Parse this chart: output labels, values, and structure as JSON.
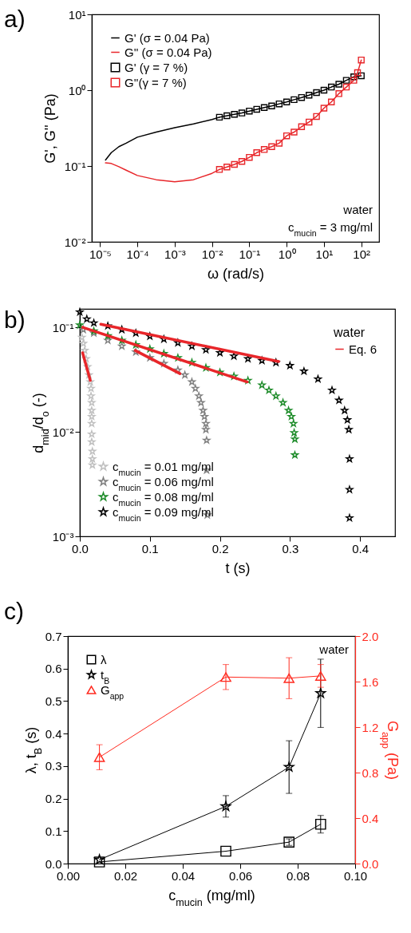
{
  "chart_data": [
    {
      "type": "line",
      "title": "a)",
      "xlabel": "ω (rad/s)",
      "ylabel": "G', G'' (Pa)",
      "log": "xy",
      "xlim": [
        6e-06,
        300
      ],
      "ylim": [
        0.01,
        10
      ],
      "xticks": [
        {
          "value": 1e-05,
          "label": "10⁻⁵"
        },
        {
          "value": 0.0001,
          "label": "10⁻⁴"
        },
        {
          "value": 0.001,
          "label": "10⁻³"
        },
        {
          "value": 0.01,
          "label": "10⁻²"
        },
        {
          "value": 0.1,
          "label": "10⁻¹"
        },
        {
          "value": 1,
          "label": "10⁰"
        },
        {
          "value": 10,
          "label": "10¹"
        },
        {
          "value": 100,
          "label": "10²"
        }
      ],
      "yticks": [
        {
          "value": 0.01,
          "label": "10⁻²"
        },
        {
          "value": 0.1,
          "label": "10⁻¹"
        },
        {
          "value": 1,
          "label": "10⁰"
        },
        {
          "value": 10,
          "label": "10¹"
        }
      ],
      "legend": "top left",
      "annotations": [
        "water",
        "c$_{mucin}$ = 3 mg/ml"
      ],
      "series": [
        {
          "name": "G' (σ = 0.04 Pa)",
          "color": "#000000",
          "marker": "none",
          "x": [
            1.4e-05,
            2e-05,
            3.2e-05,
            5e-05,
            0.0001,
            0.00032,
            0.001,
            0.0032,
            0.01,
            0.0158
          ],
          "values": [
            0.12,
            0.15,
            0.18,
            0.2,
            0.24,
            0.28,
            0.32,
            0.36,
            0.41,
            0.44
          ]
        },
        {
          "name": "G'' (σ = 0.04 Pa)",
          "color": "#e8262a",
          "marker": "none",
          "x": [
            1.4e-05,
            2e-05,
            3.2e-05,
            5e-05,
            0.0001,
            0.00032,
            0.001,
            0.0032,
            0.01,
            0.0158
          ],
          "values": [
            0.11,
            0.108,
            0.098,
            0.088,
            0.075,
            0.066,
            0.062,
            0.066,
            0.08,
            0.09
          ]
        },
        {
          "name": "G' (γ = 7 %)",
          "color": "#000000",
          "marker": "square",
          "x": [
            0.0158,
            0.0251,
            0.0398,
            0.0631,
            0.1,
            0.158,
            0.251,
            0.398,
            0.631,
            1,
            1.58,
            2.51,
            3.98,
            6.31,
            10,
            15.8,
            25.1,
            39.8,
            63.1,
            100
          ],
          "values": [
            0.44,
            0.46,
            0.48,
            0.5,
            0.53,
            0.56,
            0.59,
            0.62,
            0.66,
            0.7,
            0.75,
            0.8,
            0.86,
            0.93,
            1,
            1.1,
            1.2,
            1.35,
            1.5,
            1.55
          ]
        },
        {
          "name": "G''(γ = 7 %)",
          "color": "#e8262a",
          "marker": "square",
          "x": [
            0.0158,
            0.0251,
            0.0398,
            0.0631,
            0.1,
            0.158,
            0.251,
            0.398,
            0.631,
            1,
            1.58,
            2.51,
            3.98,
            6.31,
            10,
            15.8,
            25.1,
            39.8,
            63.1,
            79.4,
            100
          ],
          "values": [
            0.09,
            0.097,
            0.105,
            0.115,
            0.13,
            0.15,
            0.165,
            0.18,
            0.2,
            0.25,
            0.28,
            0.33,
            0.38,
            0.45,
            0.58,
            0.7,
            0.9,
            1.1,
            1.35,
            1.7,
            2.5
          ]
        }
      ]
    },
    {
      "type": "scatter",
      "title": "b)",
      "xlabel": "t (s)",
      "ylabel": "d$_{mid}$/d$_{o}$ (-)",
      "log": "y",
      "xlim": [
        0,
        0.45
      ],
      "ylim": [
        0.001,
        0.15
      ],
      "xticks": [
        {
          "value": 0,
          "label": "0.0"
        },
        0.1,
        0.2,
        0.3,
        0.4
      ],
      "yticks": [
        {
          "value": 0.001,
          "label": "10⁻³"
        },
        {
          "value": 0.01,
          "label": "10⁻²"
        },
        {
          "value": 0.1,
          "label": "10⁻¹"
        }
      ],
      "legend": "bottom left",
      "legend_title": "water",
      "marker": "star",
      "series": [
        {
          "name": "c$_{mucin}$ = 0.01 mg/ml",
          "color": "#c0c0c0",
          "x": [
            0.003,
            0.005,
            0.007,
            0.009,
            0.011,
            0.013,
            0.015,
            0.016,
            0.016,
            0.017,
            0.017,
            0.017,
            0.017,
            0.017,
            0.017,
            0.018,
            0.018,
            0.018
          ],
          "values": [
            0.08,
            0.07,
            0.06,
            0.05,
            0.042,
            0.035,
            0.03,
            0.026,
            0.022,
            0.019,
            0.016,
            0.014,
            0.012,
            0.0095,
            0.008,
            0.0065,
            0.0055,
            0.0048
          ]
        },
        {
          "name": "c$_{mucin}$ = 0.06 mg/ml",
          "color": "#808080",
          "x": [
            0.005,
            0.02,
            0.04,
            0.06,
            0.08,
            0.1,
            0.12,
            0.14,
            0.15,
            0.16,
            0.165,
            0.17,
            0.173,
            0.176,
            0.178,
            0.18,
            0.18,
            0.181,
            0.181,
            0.182
          ],
          "values": [
            0.095,
            0.088,
            0.075,
            0.066,
            0.058,
            0.051,
            0.045,
            0.039,
            0.035,
            0.03,
            0.026,
            0.022,
            0.019,
            0.016,
            0.014,
            0.012,
            0.0105,
            0.0083,
            0.0043,
            0.0016
          ]
        },
        {
          "name": "c$_{mucin}$ = 0.08 mg/ml",
          "color": "#1e8c2a",
          "x": [
            0,
            0.02,
            0.04,
            0.06,
            0.08,
            0.1,
            0.12,
            0.14,
            0.16,
            0.18,
            0.2,
            0.22,
            0.24,
            0.26,
            0.27,
            0.28,
            0.29,
            0.298,
            0.302,
            0.305,
            0.306,
            0.307,
            0.307
          ],
          "values": [
            0.105,
            0.092,
            0.083,
            0.075,
            0.068,
            0.062,
            0.056,
            0.051,
            0.046,
            0.041,
            0.037,
            0.034,
            0.031,
            0.028,
            0.025,
            0.022,
            0.019,
            0.016,
            0.014,
            0.012,
            0.0098,
            0.0085,
            0.006
          ]
        },
        {
          "name": "c$_{mucin}$ = 0.09 mg/ml",
          "color": "#000000",
          "x": [
            0,
            0.01,
            0.02,
            0.04,
            0.06,
            0.08,
            0.1,
            0.12,
            0.14,
            0.16,
            0.18,
            0.2,
            0.22,
            0.24,
            0.26,
            0.28,
            0.3,
            0.32,
            0.34,
            0.36,
            0.37,
            0.378,
            0.382,
            0.384,
            0.385,
            0.385,
            0.385
          ],
          "values": [
            0.14,
            0.12,
            0.11,
            0.103,
            0.095,
            0.088,
            0.082,
            0.077,
            0.071,
            0.066,
            0.061,
            0.057,
            0.053,
            0.05,
            0.048,
            0.046,
            0.043,
            0.038,
            0.032,
            0.025,
            0.02,
            0.016,
            0.013,
            0.0105,
            0.0055,
            0.0028,
            0.0015
          ]
        },
        {
          "name": "Eq. 6",
          "color": "#e8262a",
          "type": "line",
          "marker": "none",
          "x": [
            0.004,
            0.015,
            null,
            0.079,
            0.143,
            null,
            0.004,
            0.239,
            null,
            0.03,
            0.284
          ],
          "values": [
            0.057,
            0.031,
            null,
            0.06,
            0.036,
            null,
            0.1,
            0.03,
            null,
            0.107,
            0.047
          ]
        }
      ]
    },
    {
      "type": "line",
      "title": "c)",
      "xlabel": "c$_{mucin}$ (mg/ml)",
      "ylabel": "λ, t$_{B}$ (s)",
      "y2label": "G$_{app}$ (Pa)",
      "xlim": [
        0,
        0.1
      ],
      "ylim": [
        0,
        0.7
      ],
      "y2lim": [
        0,
        2
      ],
      "xticks": [
        {
          "value": 0,
          "label": "0.00"
        },
        {
          "value": 0.02,
          "label": "0.02"
        },
        {
          "value": 0.04,
          "label": "0.04"
        },
        {
          "value": 0.06,
          "label": "0.06"
        },
        {
          "value": 0.08,
          "label": "0.08"
        },
        {
          "value": 0.1,
          "label": "0.10"
        }
      ],
      "yticks": [
        {
          "value": 0,
          "label": "0.0"
        },
        0.1,
        0.2,
        0.3,
        0.4,
        0.5,
        0.6,
        0.7
      ],
      "y2ticks": [
        {
          "value": 0,
          "label": "0.0"
        },
        0.4,
        0.8,
        1.2,
        1.6,
        {
          "value": 2,
          "label": "2.0"
        }
      ],
      "legend": "top left",
      "annotations": [
        "water"
      ],
      "series": [
        {
          "name": "λ",
          "color": "#000000",
          "marker": "square",
          "x": [
            0.011,
            0.055,
            0.077,
            0.088
          ],
          "values": [
            0.005,
            0.038,
            0.066,
            0.121
          ],
          "errors": [
            null,
            null,
            0.01,
            0.027
          ]
        },
        {
          "name": "t$_{B}$",
          "color": "#000000",
          "marker": "star",
          "x": [
            0.011,
            0.055,
            0.077,
            0.088
          ],
          "values": [
            0.012,
            0.176,
            0.297,
            0.524
          ],
          "errors": [
            null,
            0.033,
            0.081,
            0.105
          ]
        },
        {
          "name": "G$_{app}$",
          "color": "#ff2a1f",
          "marker": "triangle",
          "axis": "y2",
          "x": [
            0.011,
            0.055,
            0.077,
            0.088
          ],
          "values": [
            0.935,
            1.64,
            1.63,
            1.65
          ],
          "errors": [
            0.11,
            0.11,
            0.18,
            0.1
          ]
        }
      ]
    }
  ]
}
